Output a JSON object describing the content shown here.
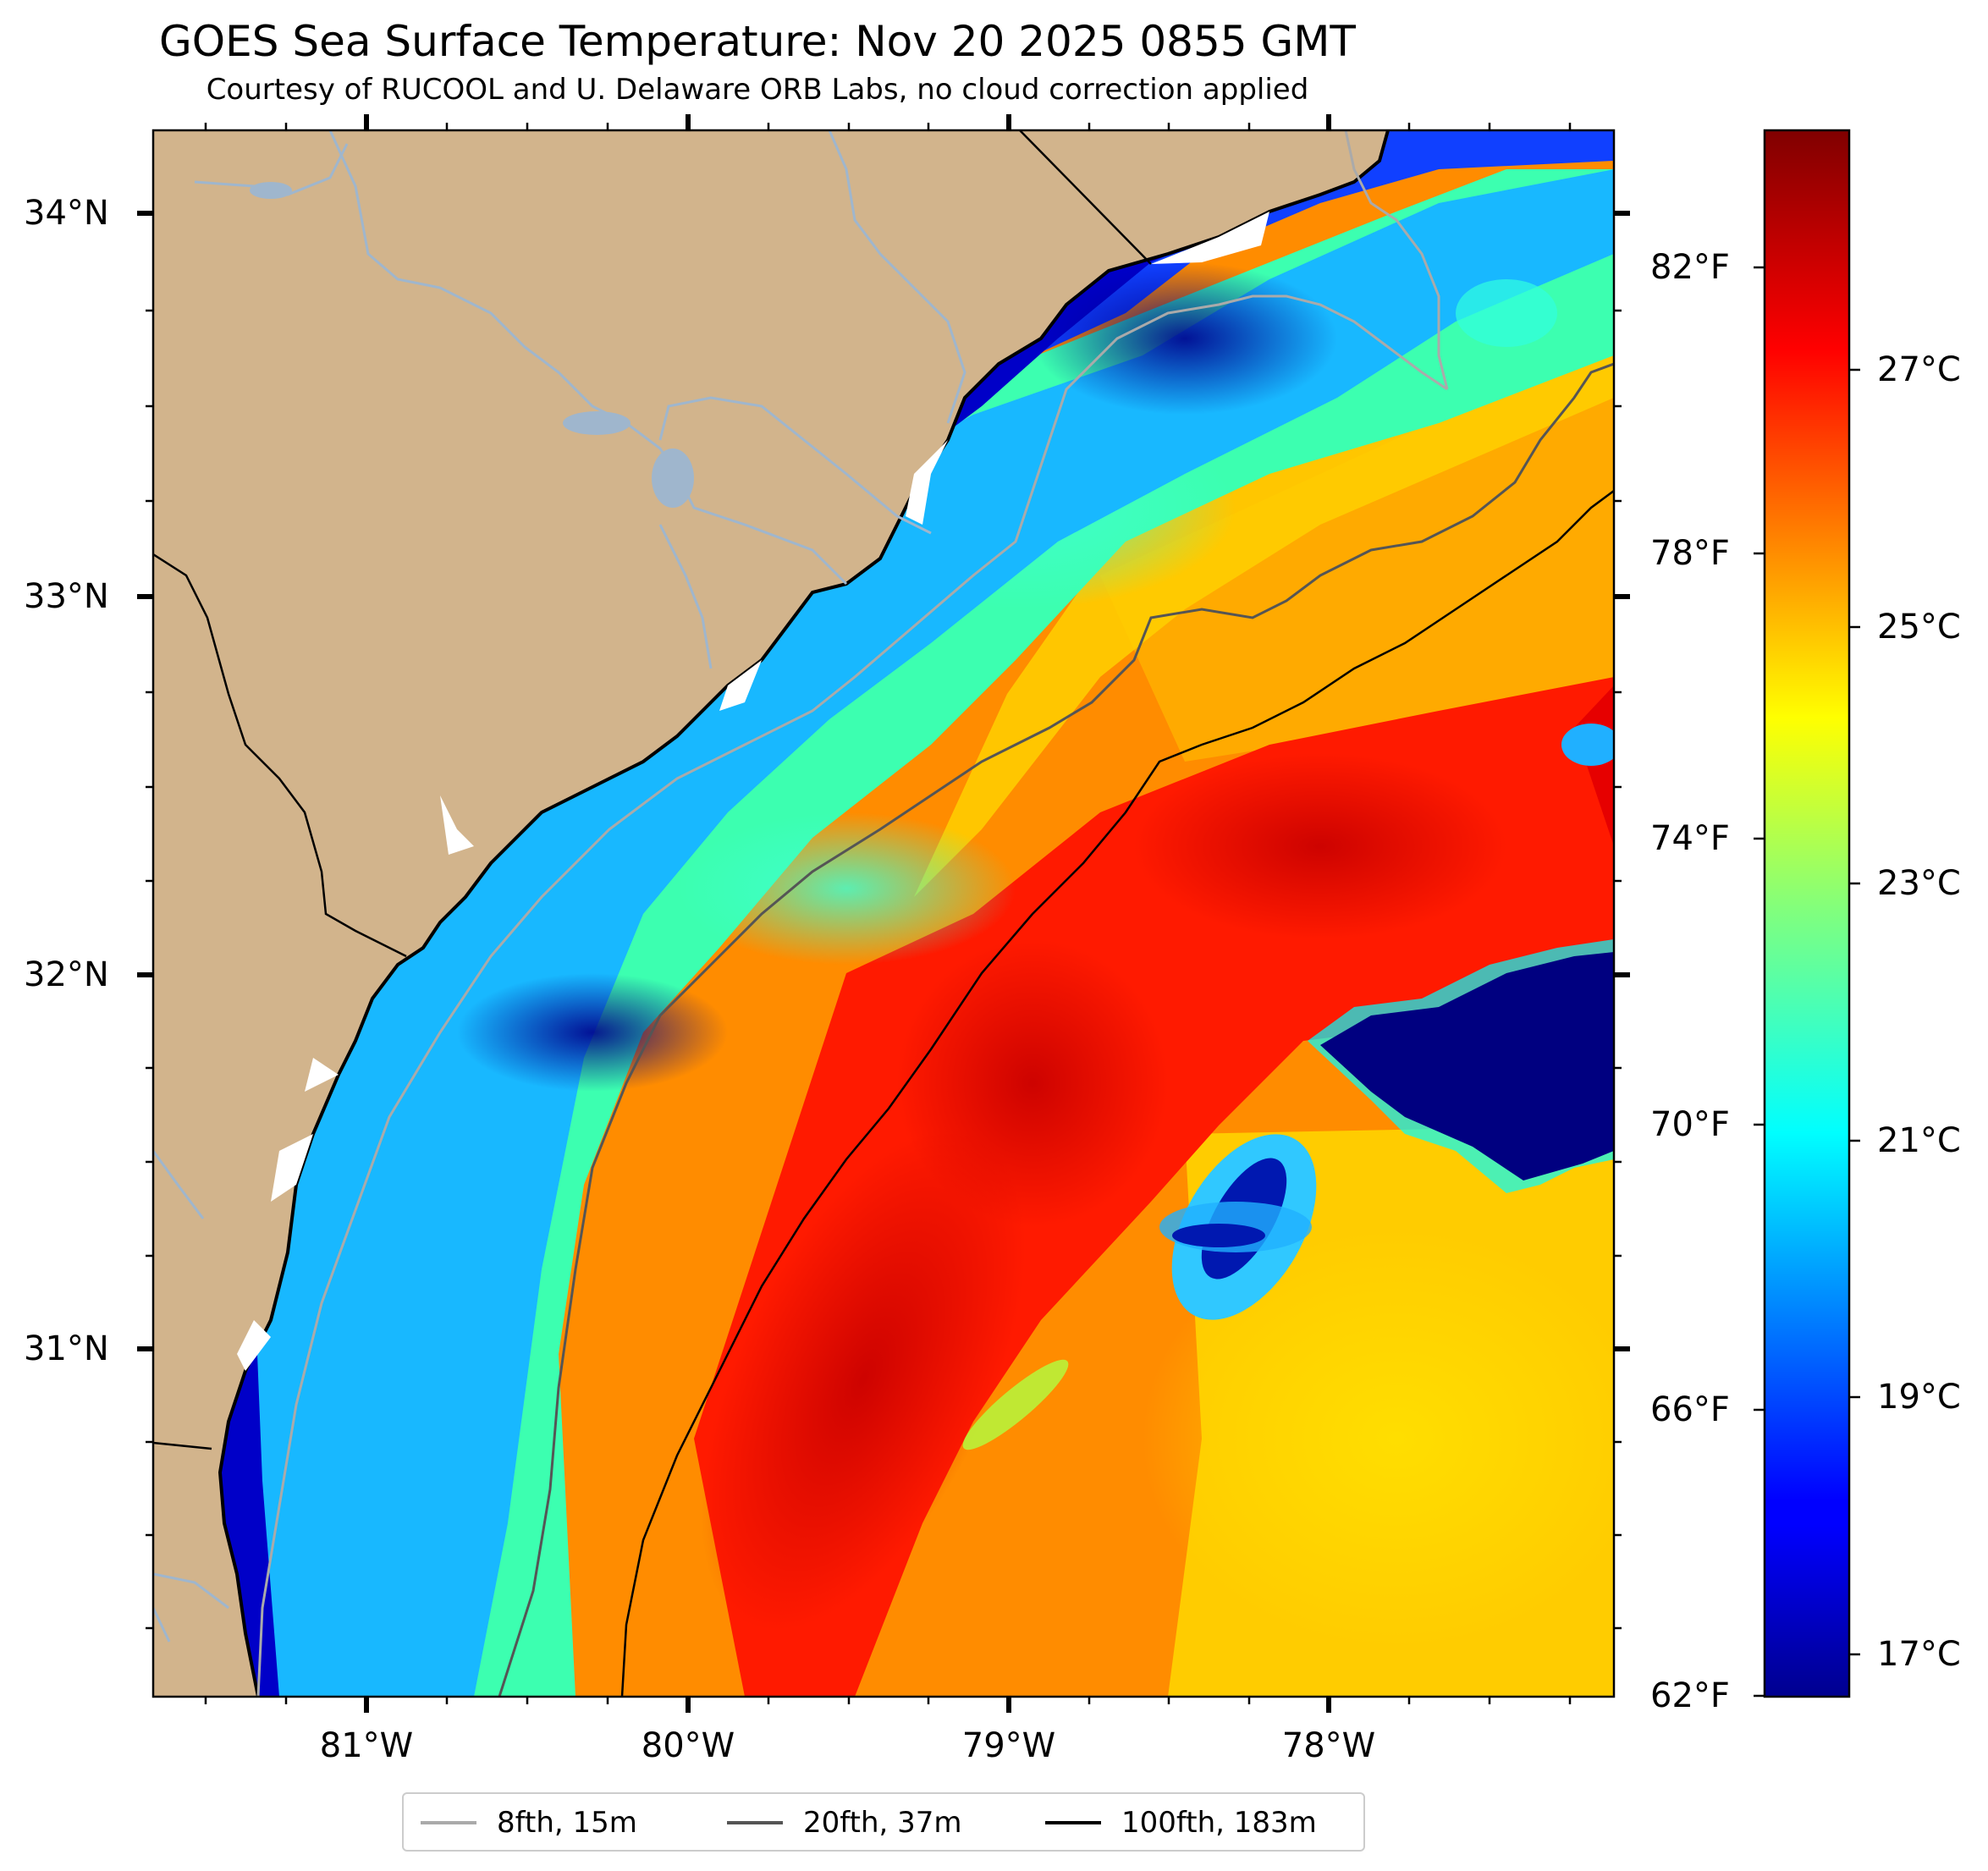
{
  "title": "GOES Sea Surface Temperature: Nov 20 2025 0855 GMT",
  "subtitle": "Courtesy of RUCOOL and U. Delaware ORB Labs, no cloud correction applied",
  "map": {
    "land_color": "#d2b48c",
    "coastline_color": "#000000",
    "river_color": "#9fb6cd",
    "lat_ticks": [
      "34°N",
      "33°N",
      "32°N",
      "31°N"
    ],
    "lon_ticks": [
      "81°W",
      "80°W",
      "79°W",
      "78°W"
    ]
  },
  "colorbar": {
    "colormap": "jet",
    "celsius_range": [
      16.7,
      28.9
    ],
    "fahrenheit_labels": [
      "82°F",
      "78°F",
      "74°F",
      "70°F",
      "66°F",
      "62°F"
    ],
    "celsius_labels": [
      "27°C",
      "25°C",
      "23°C",
      "21°C",
      "19°C",
      "17°C"
    ]
  },
  "legend": [
    {
      "label": "8fth, 15m",
      "color": "#aaaaaa"
    },
    {
      "label": "20fth, 37m",
      "color": "#555555"
    },
    {
      "label": "100fth, 183m",
      "color": "#000000"
    }
  ]
}
